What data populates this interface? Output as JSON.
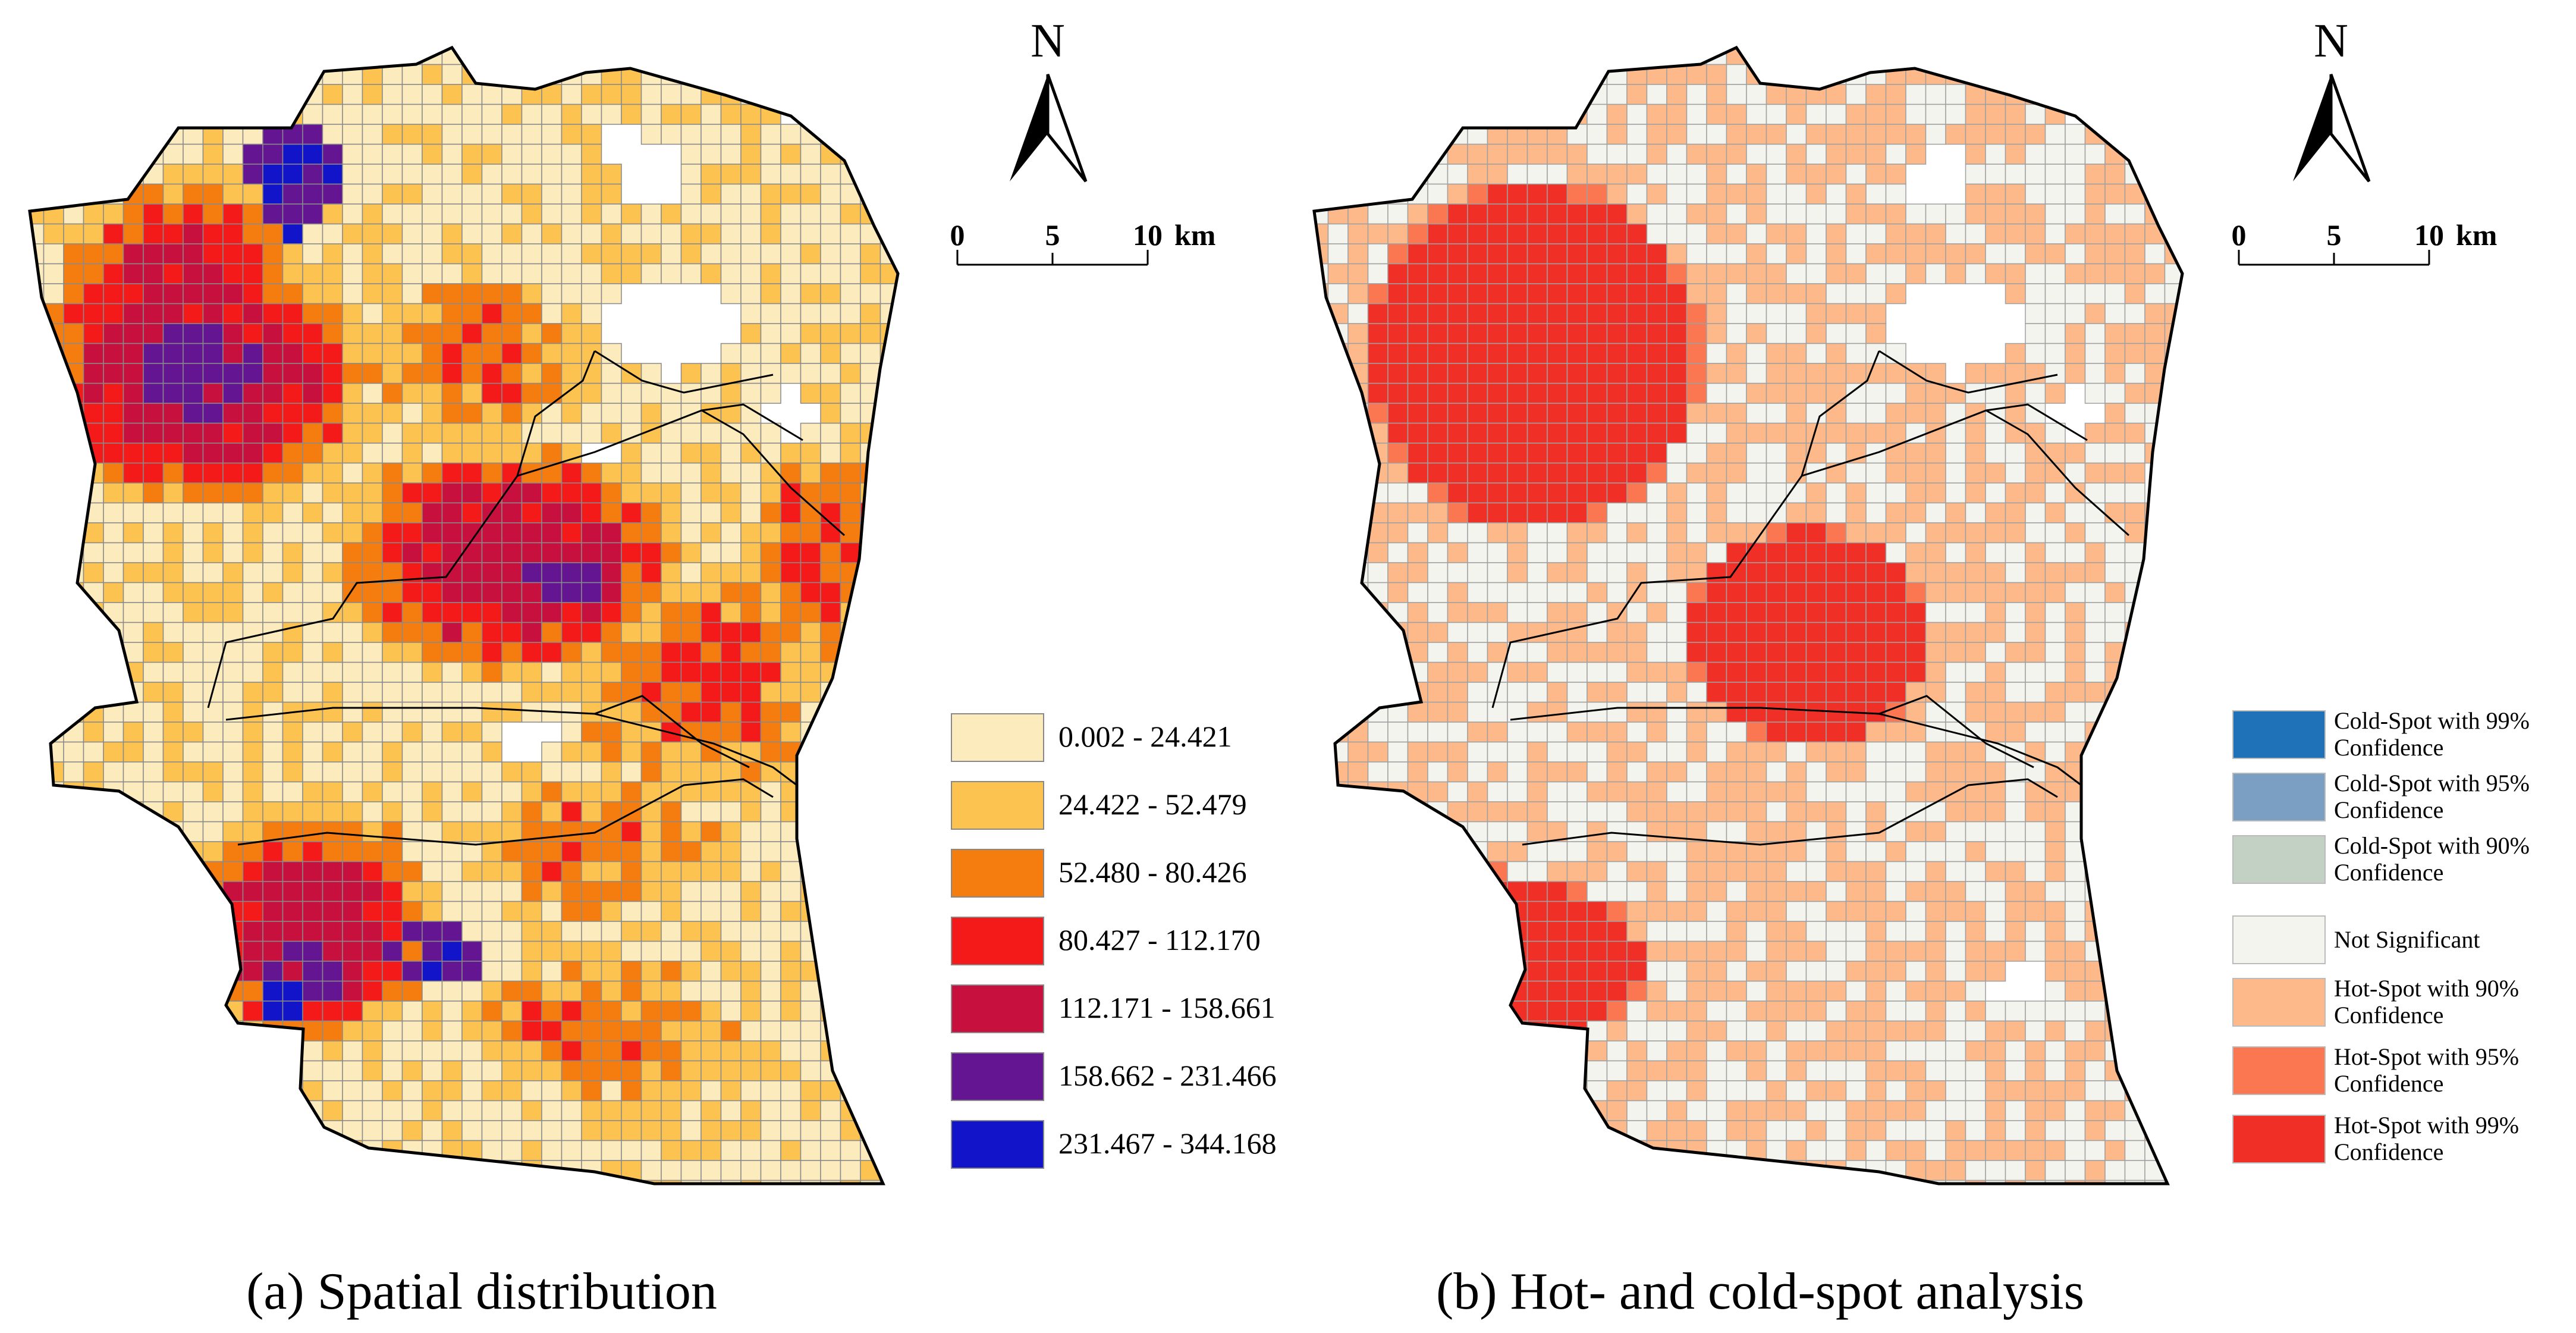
{
  "panels": [
    {
      "id": "a",
      "caption": "(a) Spatial distribution",
      "north_label": "N",
      "scale_labels": [
        "0",
        "5",
        "10"
      ],
      "scale_unit": "km",
      "legend": [
        {
          "label": "0.002 - 24.421",
          "color": "#fcebbd"
        },
        {
          "label": "24.422 - 52.479",
          "color": "#fcc350"
        },
        {
          "label": "52.480 - 80.426",
          "color": "#f57c0f"
        },
        {
          "label": "80.427 - 112.170",
          "color": "#f51a1a"
        },
        {
          "label": "112.171 - 158.661",
          "color": "#c8103f"
        },
        {
          "label": "158.662 - 231.466",
          "color": "#641591"
        },
        {
          "label": "231.467 - 344.168",
          "color": "#1114c8"
        }
      ]
    },
    {
      "id": "b",
      "caption": "(b) Hot- and cold-spot analysis",
      "north_label": "N",
      "scale_labels": [
        "0",
        "5",
        "10"
      ],
      "scale_unit": "km",
      "legend": [
        {
          "line1": "Cold-Spot with 99%",
          "line2": "Confidence",
          "color": "#1f72b8"
        },
        {
          "line1": "Cold-Spot with 95%",
          "line2": "Confidence",
          "color": "#7a9fc2"
        },
        {
          "line1": "Cold-Spot with 90%",
          "line2": "Confidence",
          "color": "#c3d1c4"
        },
        {
          "line1": "Not Significant",
          "line2": "",
          "color": "#f4f4ee"
        },
        {
          "line1": "Hot-Spot with 90%",
          "line2": "Confidence",
          "color": "#fdb98a"
        },
        {
          "line1": "Hot-Spot with 95%",
          "line2": "Confidence",
          "color": "#fb7751"
        },
        {
          "line1": "Hot-Spot with 99%",
          "line2": "Confidence",
          "color": "#f03026"
        }
      ]
    }
  ]
}
